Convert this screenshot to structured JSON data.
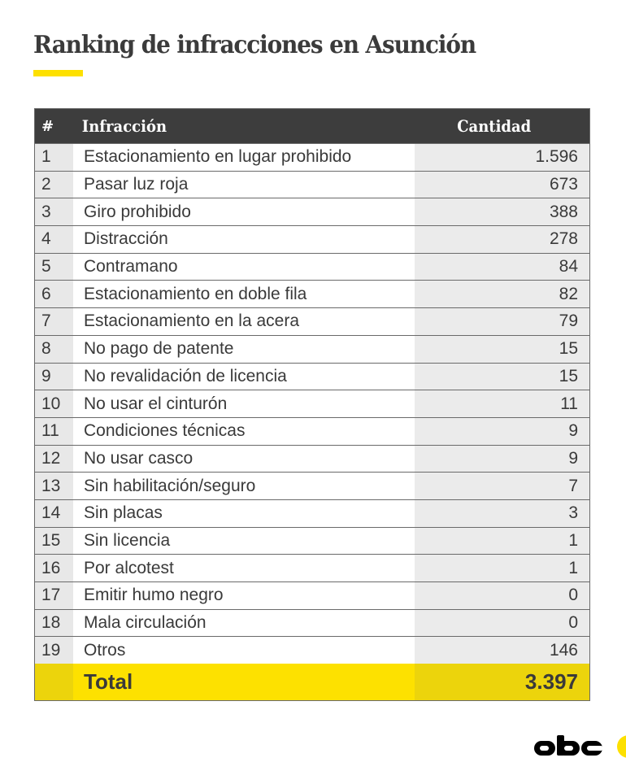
{
  "title": "Ranking de infracciones en Asunción",
  "colors": {
    "accent": "#fde000",
    "header_bg": "#3d3d3d",
    "total_side": "#ecd40c",
    "num_col_bg": "#e8e8e8",
    "qty_col_bg": "#ebebeb"
  },
  "table": {
    "headers": {
      "rank": "#",
      "infraction": "Infracción",
      "quantity": "Cantidad"
    },
    "rows": [
      {
        "rank": "1",
        "infraction": "Estacionamiento en lugar prohibido",
        "quantity": "1.596"
      },
      {
        "rank": "2",
        "infraction": "Pasar luz roja",
        "quantity": "673"
      },
      {
        "rank": "3",
        "infraction": "Giro prohibido",
        "quantity": "388"
      },
      {
        "rank": "4",
        "infraction": "Distracción",
        "quantity": "278"
      },
      {
        "rank": "5",
        "infraction": "Contramano",
        "quantity": "84"
      },
      {
        "rank": "6",
        "infraction": "Estacionamiento en doble fila",
        "quantity": "82"
      },
      {
        "rank": "7",
        "infraction": "Estacionamiento en la acera",
        "quantity": "79"
      },
      {
        "rank": "8",
        "infraction": "No pago de patente",
        "quantity": "15"
      },
      {
        "rank": "9",
        "infraction": "No revalidación de licencia",
        "quantity": "15"
      },
      {
        "rank": "10",
        "infraction": "No usar el cinturón",
        "quantity": "11"
      },
      {
        "rank": "11",
        "infraction": "Condiciones técnicas",
        "quantity": "9"
      },
      {
        "rank": "12",
        "infraction": "No usar casco",
        "quantity": "9"
      },
      {
        "rank": "13",
        "infraction": "Sin habilitación/seguro",
        "quantity": "7"
      },
      {
        "rank": "14",
        "infraction": "Sin placas",
        "quantity": "3"
      },
      {
        "rank": "15",
        "infraction": "Sin licencia",
        "quantity": "1"
      },
      {
        "rank": "16",
        "infraction": "Por alcotest",
        "quantity": "1"
      },
      {
        "rank": "17",
        "infraction": "Emitir humo negro",
        "quantity": "0"
      },
      {
        "rank": "18",
        "infraction": "Mala circulación",
        "quantity": "0"
      },
      {
        "rank": "19",
        "infraction": "Otros",
        "quantity": "146"
      }
    ],
    "total": {
      "label": "Total",
      "quantity": "3.397"
    }
  },
  "logo": {
    "text": "abc",
    "icon": "abc-logo-icon"
  }
}
